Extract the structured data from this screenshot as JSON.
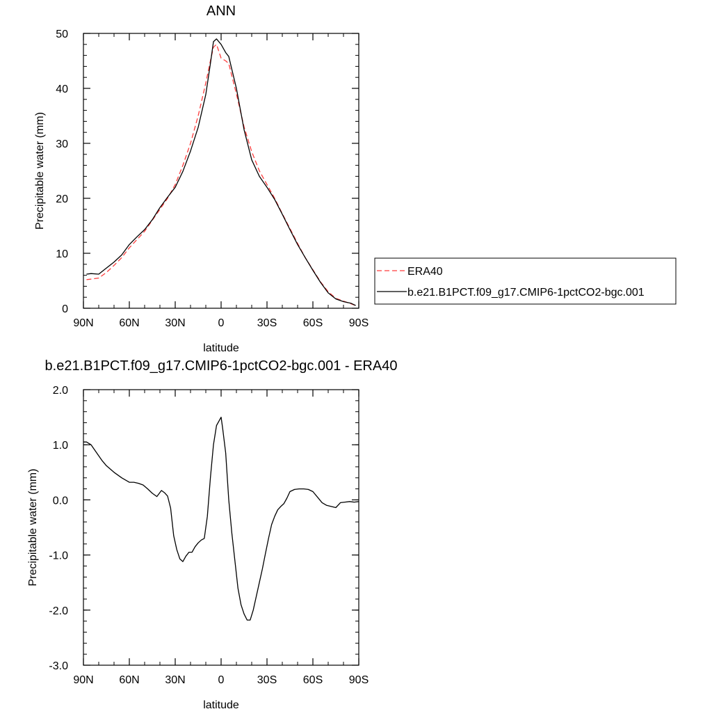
{
  "chart_data": [
    {
      "type": "line",
      "title": "ANN",
      "xlabel": "latitude",
      "ylabel": "Precipitable water (mm)",
      "xlim": [
        90,
        -90
      ],
      "ylim": [
        0,
        50
      ],
      "yticks": [
        0,
        10,
        20,
        30,
        40,
        50
      ],
      "xticks": [
        {
          "value": 90,
          "label": "90N"
        },
        {
          "value": 60,
          "label": "60N"
        },
        {
          "value": 30,
          "label": "30N"
        },
        {
          "value": 0,
          "label": "0"
        },
        {
          "value": -30,
          "label": "30S"
        },
        {
          "value": -60,
          "label": "60S"
        },
        {
          "value": -90,
          "label": "90S"
        }
      ],
      "legend_position": "right",
      "series": [
        {
          "name": "ERA40",
          "color": "#ff3b3b",
          "dash": "dashed",
          "x": [
            88,
            85,
            80,
            75,
            70,
            65,
            60,
            55,
            50,
            45,
            40,
            35,
            30,
            25,
            20,
            15,
            10,
            7,
            5,
            3,
            0,
            -3,
            -5,
            -10,
            -15,
            -20,
            -25,
            -30,
            -35,
            -40,
            -45,
            -50,
            -55,
            -60,
            -65,
            -70,
            -75,
            -80,
            -85,
            -88
          ],
          "y": [
            5.2,
            5.3,
            5.5,
            6.5,
            7.8,
            9.2,
            11.0,
            12.5,
            14.0,
            16.0,
            18.0,
            20.0,
            22.5,
            26.0,
            30.0,
            35.0,
            41.0,
            45.0,
            47.5,
            48.0,
            45.5,
            45.0,
            44.5,
            39.0,
            33.0,
            28.5,
            25.0,
            22.5,
            20.0,
            17.2,
            14.5,
            11.8,
            9.2,
            7.0,
            4.8,
            3.0,
            1.8,
            1.3,
            0.8,
            0.5
          ]
        },
        {
          "name": "b.e21.B1PCT.f09_g17.CMIP6-1pctCO2-bgc.001",
          "color": "#000000",
          "dash": "solid",
          "x": [
            88,
            85,
            80,
            75,
            70,
            65,
            60,
            55,
            50,
            45,
            40,
            35,
            30,
            25,
            20,
            15,
            10,
            7,
            5,
            3,
            0,
            -3,
            -5,
            -10,
            -15,
            -20,
            -25,
            -30,
            -35,
            -40,
            -45,
            -50,
            -55,
            -60,
            -65,
            -70,
            -75,
            -80,
            -85,
            -88
          ],
          "y": [
            6.2,
            6.3,
            6.2,
            7.3,
            8.4,
            9.7,
            11.6,
            13.0,
            14.3,
            16.1,
            18.3,
            20.2,
            22.0,
            24.9,
            28.6,
            32.9,
            38.9,
            44.5,
            48.5,
            49.0,
            48.0,
            46.5,
            45.8,
            40.0,
            32.5,
            27.0,
            24.0,
            22.0,
            19.8,
            17.1,
            14.3,
            11.6,
            9.2,
            6.9,
            4.7,
            2.8,
            1.7,
            1.2,
            0.9,
            0.5
          ]
        }
      ]
    },
    {
      "type": "line",
      "title": "b.e21.B1PCT.f09_g17.CMIP6-1pctCO2-bgc.001 - ERA40",
      "xlabel": "latitude",
      "ylabel": "Precipitable water (mm)",
      "xlim": [
        90,
        -90
      ],
      "ylim": [
        -3.0,
        2.0
      ],
      "yticks": [
        -3.0,
        -2.0,
        -1.0,
        0.0,
        1.0,
        2.0
      ],
      "xticks": [
        {
          "value": 90,
          "label": "90N"
        },
        {
          "value": 60,
          "label": "60N"
        },
        {
          "value": 30,
          "label": "30N"
        },
        {
          "value": 0,
          "label": "0"
        },
        {
          "value": -30,
          "label": "30S"
        },
        {
          "value": -60,
          "label": "60S"
        },
        {
          "value": -90,
          "label": "90S"
        }
      ],
      "series": [
        {
          "color": "#000000",
          "dash": "solid",
          "x": [
            90,
            88,
            85,
            82,
            78,
            75,
            70,
            65,
            60,
            57,
            54,
            51,
            48,
            45,
            42,
            39,
            37,
            35,
            33,
            31,
            29,
            27,
            25,
            23,
            21,
            19,
            17,
            15,
            13,
            11,
            9,
            7,
            5,
            3,
            1,
            0,
            -1,
            -3,
            -5,
            -7,
            -9,
            -11,
            -13,
            -15,
            -17,
            -19,
            -21,
            -23,
            -25,
            -27,
            -29,
            -31,
            -33,
            -35,
            -37,
            -39,
            -41,
            -43,
            -45,
            -48,
            -51,
            -54,
            -57,
            -60,
            -63,
            -66,
            -69,
            -72,
            -75,
            -78,
            -81,
            -84,
            -87,
            -90
          ],
          "y": [
            1.05,
            1.05,
            1.0,
            0.88,
            0.72,
            0.62,
            0.5,
            0.4,
            0.32,
            0.32,
            0.3,
            0.27,
            0.2,
            0.12,
            0.06,
            0.17,
            0.13,
            0.07,
            -0.15,
            -0.65,
            -0.9,
            -1.07,
            -1.12,
            -1.02,
            -0.95,
            -0.95,
            -0.85,
            -0.78,
            -0.73,
            -0.7,
            -0.3,
            0.4,
            1.0,
            1.35,
            1.45,
            1.5,
            1.3,
            0.85,
            0.0,
            -0.6,
            -1.1,
            -1.6,
            -1.9,
            -2.07,
            -2.18,
            -2.18,
            -2.0,
            -1.75,
            -1.5,
            -1.25,
            -0.97,
            -0.7,
            -0.45,
            -0.3,
            -0.18,
            -0.12,
            -0.07,
            0.03,
            0.15,
            0.19,
            0.2,
            0.2,
            0.19,
            0.15,
            0.05,
            -0.05,
            -0.1,
            -0.12,
            -0.14,
            -0.05,
            -0.04,
            -0.03,
            -0.04,
            -0.03
          ]
        }
      ]
    }
  ]
}
